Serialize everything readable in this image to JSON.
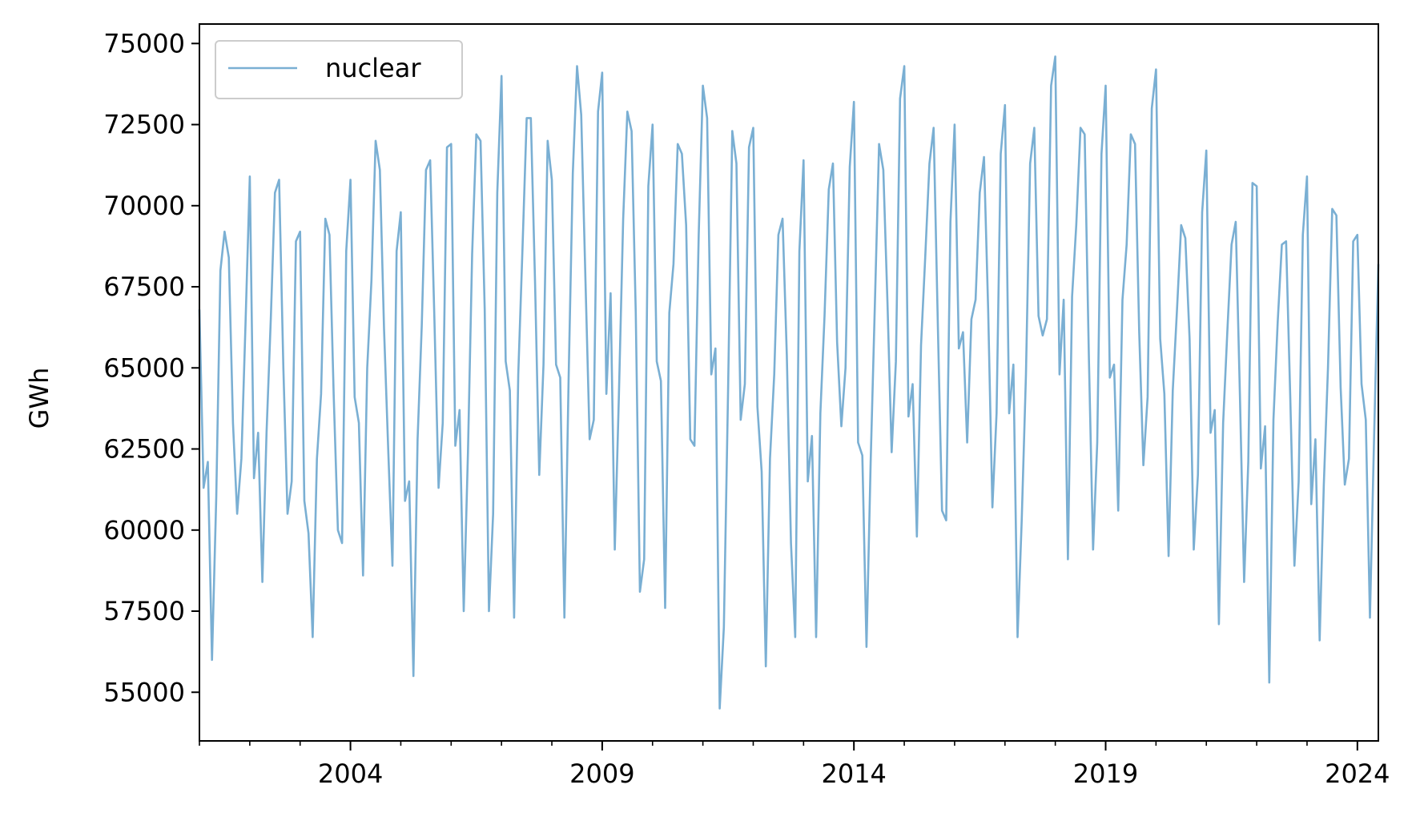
{
  "chart_data": {
    "type": "line",
    "title": "",
    "xlabel": "",
    "ylabel": "GWh",
    "x_start": "2001-01",
    "x_end": "2024-06",
    "frequency": "monthly",
    "xlim": [
      "2001-01",
      "2024-06"
    ],
    "ylim": [
      53500,
      75600
    ],
    "xticks": [
      "2004",
      "2009",
      "2014",
      "2019",
      "2024"
    ],
    "yticks": [
      55000,
      57500,
      60000,
      62500,
      65000,
      67500,
      70000,
      72500,
      75000
    ],
    "grid": false,
    "legend": {
      "position": "upper left",
      "entries": [
        "nuclear"
      ]
    },
    "series": [
      {
        "name": "nuclear",
        "color": "#7aafd3",
        "values": [
          66800,
          61300,
          62100,
          56000,
          61000,
          68000,
          69200,
          68400,
          63300,
          60500,
          62200,
          66400,
          70900,
          61600,
          63000,
          58400,
          63000,
          66500,
          70400,
          70800,
          65000,
          60500,
          61500,
          68900,
          69200,
          60900,
          59900,
          56700,
          62200,
          64200,
          69600,
          69100,
          64200,
          60000,
          59600,
          68600,
          70800,
          64100,
          63300,
          58600,
          65000,
          67700,
          72000,
          71100,
          66200,
          62500,
          58900,
          68600,
          69800,
          60900,
          61500,
          55500,
          62800,
          66300,
          71100,
          71400,
          66500,
          61300,
          63300,
          71800,
          71900,
          62600,
          63700,
          57500,
          62400,
          68500,
          72200,
          72000,
          66800,
          57500,
          60500,
          70400,
          74000,
          65200,
          64300,
          57300,
          64800,
          68700,
          72700,
          72700,
          67600,
          61700,
          65100,
          72000,
          70800,
          65100,
          64700,
          57300,
          64700,
          71000,
          74300,
          72800,
          67800,
          62800,
          63400,
          72900,
          74100,
          64200,
          67300,
          59400,
          64200,
          69600,
          72900,
          72300,
          66700,
          58100,
          59100,
          70600,
          72500,
          65200,
          64600,
          57600,
          66700,
          68200,
          71900,
          71600,
          69400,
          62800,
          62600,
          69100,
          73700,
          72700,
          64800,
          65600,
          54500,
          57000,
          64200,
          72300,
          71300,
          63400,
          64500,
          71800,
          72400,
          63800,
          61800,
          55800,
          62200,
          64800,
          69100,
          69600,
          65400,
          59600,
          56700,
          68600,
          71400,
          61500,
          62900,
          56700,
          63600,
          66600,
          70500,
          71300,
          65800,
          63200,
          65000,
          71200,
          73200,
          62700,
          62300,
          56400,
          62100,
          67000,
          71900,
          71100,
          67000,
          62400,
          65200,
          73300,
          74300,
          63500,
          64500,
          59800,
          65700,
          68400,
          71300,
          72400,
          66300,
          60600,
          60300,
          69500,
          72500,
          65600,
          66100,
          62700,
          66500,
          67100,
          70400,
          71500,
          66800,
          60700,
          63600,
          71600,
          73100,
          63600,
          65100,
          56700,
          60300,
          64800,
          71300,
          72400,
          66600,
          66000,
          66500,
          73700,
          74600,
          64800,
          67100,
          59100,
          67200,
          69400,
          72400,
          72200,
          65400,
          59400,
          62700,
          71600,
          73700,
          64700,
          65100,
          60600,
          67100,
          68800,
          72200,
          71900,
          66100,
          62000,
          64100,
          73000,
          74200,
          65900,
          64200,
          59200,
          64300,
          66800,
          69400,
          69000,
          65900,
          59400,
          61700,
          69800,
          71700,
          63000,
          63700,
          57100,
          63300,
          66100,
          68800,
          69500,
          64200,
          58400,
          62100,
          70700,
          70600,
          61900,
          63200,
          55300,
          63400,
          66400,
          68800,
          68900,
          64100,
          58900,
          61500,
          69100,
          70900,
          60800,
          62800,
          56600,
          61400,
          65000,
          69900,
          69700,
          64400,
          61400,
          62200,
          68900,
          69100,
          64500,
          63400,
          57300,
          63000,
          68200
        ]
      }
    ]
  }
}
